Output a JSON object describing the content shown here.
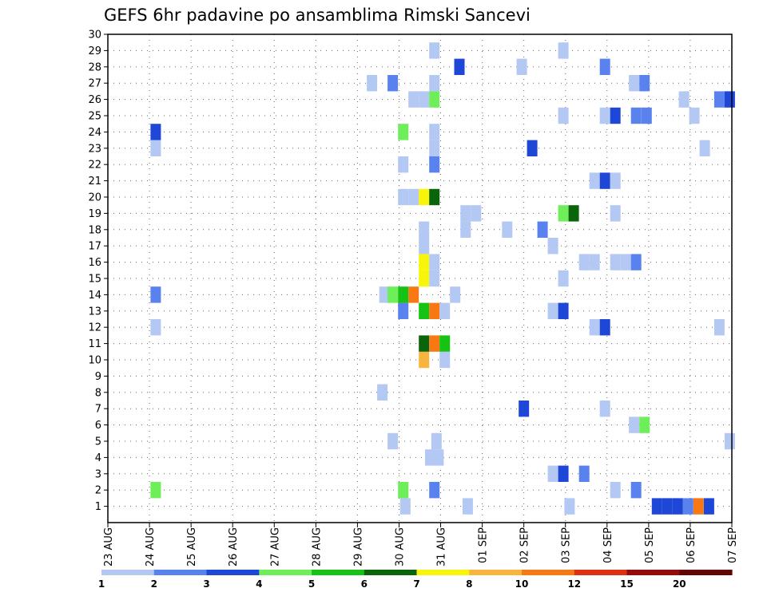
{
  "chart_data": {
    "type": "heatmap",
    "title": "GEFS 6hr padavine po ansamblima Rimski Sancevi",
    "xlabel": "",
    "ylabel": "",
    "x_tick_labels": [
      "23 AUG",
      "24 AUG",
      "25 AUG",
      "26 AUG",
      "27 AUG",
      "28 AUG",
      "29 AUG",
      "30 AUG",
      "31 AUG",
      "01 SEP",
      "02 SEP",
      "03 SEP",
      "04 SEP",
      "05 SEP",
      "06 SEP",
      "07 SEP"
    ],
    "y_tick_labels": [
      "1",
      "2",
      "3",
      "4",
      "5",
      "6",
      "7",
      "8",
      "9",
      "10",
      "11",
      "12",
      "13",
      "14",
      "15",
      "16",
      "17",
      "18",
      "19",
      "20",
      "21",
      "22",
      "23",
      "24",
      "25",
      "26",
      "27",
      "28",
      "29",
      "30"
    ],
    "xlim_days": [
      0,
      15
    ],
    "ylim": [
      0,
      30
    ],
    "grid": true,
    "colorbar": {
      "labels": [
        "1",
        "2",
        "3",
        "4",
        "5",
        "6",
        "7",
        "8",
        "10",
        "12",
        "15",
        "20"
      ],
      "colors": [
        "#b4c8f4",
        "#5a82ee",
        "#1e46d7",
        "#6eef5a",
        "#14c314",
        "#0a640a",
        "#f8f50a",
        "#f8b43c",
        "#f87814",
        "#dc3212",
        "#960a0a",
        "#640505"
      ]
    },
    "cells": [
      {
        "member": 1,
        "day": 7.15,
        "bin": 1
      },
      {
        "member": 1,
        "day": 8.65,
        "bin": 1
      },
      {
        "member": 1,
        "day": 11.1,
        "bin": 1
      },
      {
        "member": 1,
        "day": 13.2,
        "bin": 3
      },
      {
        "member": 1,
        "day": 13.45,
        "bin": 3
      },
      {
        "member": 1,
        "day": 13.7,
        "bin": 3
      },
      {
        "member": 1,
        "day": 13.95,
        "bin": 2
      },
      {
        "member": 1,
        "day": 14.2,
        "bin": 9
      },
      {
        "member": 1,
        "day": 14.45,
        "bin": 3
      },
      {
        "member": 2,
        "day": 1.15,
        "bin": 4
      },
      {
        "member": 2,
        "day": 7.1,
        "bin": 4
      },
      {
        "member": 2,
        "day": 7.85,
        "bin": 2
      },
      {
        "member": 2,
        "day": 12.2,
        "bin": 1
      },
      {
        "member": 2,
        "day": 12.7,
        "bin": 2
      },
      {
        "member": 3,
        "day": 10.7,
        "bin": 1
      },
      {
        "member": 3,
        "day": 10.95,
        "bin": 3
      },
      {
        "member": 3,
        "day": 11.45,
        "bin": 2
      },
      {
        "member": 4,
        "day": 7.75,
        "bin": 1
      },
      {
        "member": 4,
        "day": 7.95,
        "bin": 1
      },
      {
        "member": 5,
        "day": 6.85,
        "bin": 1
      },
      {
        "member": 5,
        "day": 7.9,
        "bin": 1
      },
      {
        "member": 5,
        "day": 14.95,
        "bin": 1
      },
      {
        "member": 6,
        "day": 12.65,
        "bin": 1
      },
      {
        "member": 6,
        "day": 12.9,
        "bin": 4
      },
      {
        "member": 7,
        "day": 10.0,
        "bin": 3
      },
      {
        "member": 7,
        "day": 11.95,
        "bin": 1
      },
      {
        "member": 8,
        "day": 6.6,
        "bin": 1
      },
      {
        "member": 10,
        "day": 7.6,
        "bin": 8
      },
      {
        "member": 10,
        "day": 8.1,
        "bin": 1
      },
      {
        "member": 11,
        "day": 7.6,
        "bin": 6
      },
      {
        "member": 11,
        "day": 7.85,
        "bin": 9
      },
      {
        "member": 11,
        "day": 8.1,
        "bin": 5
      },
      {
        "member": 12,
        "day": 1.15,
        "bin": 1
      },
      {
        "member": 12,
        "day": 11.7,
        "bin": 1
      },
      {
        "member": 12,
        "day": 11.95,
        "bin": 3
      },
      {
        "member": 12,
        "day": 14.7,
        "bin": 1
      },
      {
        "member": 13,
        "day": 7.1,
        "bin": 2
      },
      {
        "member": 13,
        "day": 7.6,
        "bin": 5
      },
      {
        "member": 13,
        "day": 7.85,
        "bin": 9
      },
      {
        "member": 13,
        "day": 8.1,
        "bin": 1
      },
      {
        "member": 13,
        "day": 10.7,
        "bin": 1
      },
      {
        "member": 13,
        "day": 10.95,
        "bin": 3
      },
      {
        "member": 14,
        "day": 1.15,
        "bin": 2
      },
      {
        "member": 14,
        "day": 6.65,
        "bin": 1
      },
      {
        "member": 14,
        "day": 6.85,
        "bin": 4
      },
      {
        "member": 14,
        "day": 7.1,
        "bin": 5
      },
      {
        "member": 14,
        "day": 7.35,
        "bin": 9
      },
      {
        "member": 14,
        "day": 8.35,
        "bin": 1
      },
      {
        "member": 15,
        "day": 7.6,
        "bin": 7
      },
      {
        "member": 15,
        "day": 7.85,
        "bin": 1
      },
      {
        "member": 15,
        "day": 10.95,
        "bin": 1
      },
      {
        "member": 16,
        "day": 7.6,
        "bin": 7
      },
      {
        "member": 16,
        "day": 7.85,
        "bin": 1
      },
      {
        "member": 16,
        "day": 11.45,
        "bin": 1
      },
      {
        "member": 16,
        "day": 11.7,
        "bin": 1
      },
      {
        "member": 16,
        "day": 12.2,
        "bin": 1
      },
      {
        "member": 16,
        "day": 12.45,
        "bin": 1
      },
      {
        "member": 16,
        "day": 12.7,
        "bin": 2
      },
      {
        "member": 17,
        "day": 7.6,
        "bin": 1
      },
      {
        "member": 17,
        "day": 10.7,
        "bin": 1
      },
      {
        "member": 18,
        "day": 7.6,
        "bin": 1
      },
      {
        "member": 18,
        "day": 8.6,
        "bin": 1
      },
      {
        "member": 18,
        "day": 9.6,
        "bin": 1
      },
      {
        "member": 18,
        "day": 10.45,
        "bin": 2
      },
      {
        "member": 19,
        "day": 8.6,
        "bin": 1
      },
      {
        "member": 19,
        "day": 8.85,
        "bin": 1
      },
      {
        "member": 19,
        "day": 10.95,
        "bin": 4
      },
      {
        "member": 19,
        "day": 11.2,
        "bin": 6
      },
      {
        "member": 19,
        "day": 12.2,
        "bin": 1
      },
      {
        "member": 20,
        "day": 7.1,
        "bin": 1
      },
      {
        "member": 20,
        "day": 7.35,
        "bin": 1
      },
      {
        "member": 20,
        "day": 7.6,
        "bin": 7
      },
      {
        "member": 20,
        "day": 7.85,
        "bin": 6
      },
      {
        "member": 21,
        "day": 11.7,
        "bin": 1
      },
      {
        "member": 21,
        "day": 11.95,
        "bin": 3
      },
      {
        "member": 21,
        "day": 12.2,
        "bin": 1
      },
      {
        "member": 22,
        "day": 7.1,
        "bin": 1
      },
      {
        "member": 22,
        "day": 7.85,
        "bin": 2
      },
      {
        "member": 23,
        "day": 1.15,
        "bin": 1
      },
      {
        "member": 23,
        "day": 7.85,
        "bin": 1
      },
      {
        "member": 23,
        "day": 10.2,
        "bin": 3
      },
      {
        "member": 23,
        "day": 14.35,
        "bin": 1
      },
      {
        "member": 24,
        "day": 1.15,
        "bin": 3
      },
      {
        "member": 24,
        "day": 7.1,
        "bin": 4
      },
      {
        "member": 24,
        "day": 7.85,
        "bin": 1
      },
      {
        "member": 25,
        "day": 10.95,
        "bin": 1
      },
      {
        "member": 25,
        "day": 11.95,
        "bin": 1
      },
      {
        "member": 25,
        "day": 12.2,
        "bin": 3
      },
      {
        "member": 25,
        "day": 12.7,
        "bin": 2
      },
      {
        "member": 25,
        "day": 12.95,
        "bin": 2
      },
      {
        "member": 25,
        "day": 14.1,
        "bin": 1
      },
      {
        "member": 26,
        "day": 7.35,
        "bin": 1
      },
      {
        "member": 26,
        "day": 7.6,
        "bin": 1
      },
      {
        "member": 26,
        "day": 7.85,
        "bin": 4
      },
      {
        "member": 26,
        "day": 13.85,
        "bin": 1
      },
      {
        "member": 26,
        "day": 14.7,
        "bin": 2
      },
      {
        "member": 26,
        "day": 14.95,
        "bin": 3
      },
      {
        "member": 27,
        "day": 6.35,
        "bin": 1
      },
      {
        "member": 27,
        "day": 6.85,
        "bin": 2
      },
      {
        "member": 27,
        "day": 7.85,
        "bin": 1
      },
      {
        "member": 27,
        "day": 12.65,
        "bin": 1
      },
      {
        "member": 27,
        "day": 12.9,
        "bin": 2
      },
      {
        "member": 28,
        "day": 8.45,
        "bin": 3
      },
      {
        "member": 28,
        "day": 9.95,
        "bin": 1
      },
      {
        "member": 28,
        "day": 11.95,
        "bin": 2
      },
      {
        "member": 29,
        "day": 7.85,
        "bin": 1
      },
      {
        "member": 29,
        "day": 10.95,
        "bin": 1
      }
    ]
  }
}
